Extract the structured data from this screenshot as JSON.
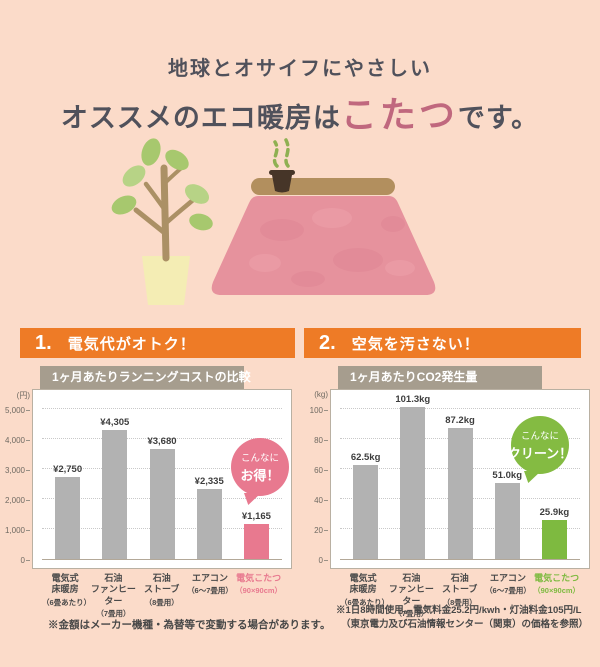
{
  "title": {
    "line1": "地球とオサイフにやさしい",
    "line2_prefix": "オススメのエコ暖房は",
    "line2_accent": "こたつ",
    "line2_suffix": "です。",
    "accent_color": "#c0687e"
  },
  "colors": {
    "background": "#fbdbc9",
    "header_orange": "#ee7b26",
    "tab_taupe": "#a69d8e",
    "bar_gray": "#b2b2b2",
    "pink_accent": "#e8798f",
    "green_accent": "#7eba40"
  },
  "sections": [
    {
      "number": "1.",
      "heading": "電気代がオトク！"
    },
    {
      "number": "2.",
      "heading": "空気を汚さない！"
    }
  ],
  "chart_data": [
    {
      "type": "bar",
      "title": "1ヶ月あたりランニングコストの比較",
      "unit_label": "(円)",
      "ylim": [
        0,
        5000
      ],
      "grid": true,
      "yticks": [
        {
          "v": 0,
          "label": "0"
        },
        {
          "v": 1000,
          "label": "1,000"
        },
        {
          "v": 2000,
          "label": "2,000"
        },
        {
          "v": 3000,
          "label": "3,000"
        },
        {
          "v": 4000,
          "label": "4,000"
        },
        {
          "v": 5000,
          "label": "5,000"
        }
      ],
      "categories": [
        {
          "lines": [
            "電気式",
            "床暖房"
          ],
          "sub": "（6畳あたり）"
        },
        {
          "lines": [
            "石油",
            "ファンヒーター"
          ],
          "sub": "（7畳用）"
        },
        {
          "lines": [
            "石油",
            "ストーブ"
          ],
          "sub": "（8畳用）"
        },
        {
          "lines": [
            "エアコン"
          ],
          "sub": "（6～7畳用）"
        },
        {
          "lines": [
            "電気こたつ"
          ],
          "sub": "（90×90cm）"
        }
      ],
      "values": [
        2750,
        4305,
        3680,
        2335,
        1165
      ],
      "value_labels": [
        "¥2,750",
        "¥4,305",
        "¥3,680",
        "¥2,335",
        "¥1,165"
      ],
      "highlight_index": 4,
      "bar_color": "#b2b2b2",
      "highlight_color": "#e8798f",
      "badge": {
        "line1": "こんなに",
        "line2": "お得！",
        "color": "#e8798f"
      }
    },
    {
      "type": "bar",
      "title": "1ヶ月あたりCO2発生量",
      "unit_label": "(kg)",
      "ylim": [
        0,
        100
      ],
      "grid": true,
      "yticks": [
        {
          "v": 0,
          "label": "0"
        },
        {
          "v": 20,
          "label": "20"
        },
        {
          "v": 40,
          "label": "40"
        },
        {
          "v": 60,
          "label": "60"
        },
        {
          "v": 80,
          "label": "80"
        },
        {
          "v": 100,
          "label": "100"
        }
      ],
      "categories": [
        {
          "lines": [
            "電気式",
            "床暖房"
          ],
          "sub": "（6畳あたり）"
        },
        {
          "lines": [
            "石油",
            "ファンヒーター"
          ],
          "sub": "（7畳用）"
        },
        {
          "lines": [
            "石油",
            "ストーブ"
          ],
          "sub": "（8畳用）"
        },
        {
          "lines": [
            "エアコン"
          ],
          "sub": "（6～7畳用）"
        },
        {
          "lines": [
            "電気こたつ"
          ],
          "sub": "（90×90cm）"
        }
      ],
      "values": [
        62.5,
        101.3,
        87.2,
        51.0,
        25.9
      ],
      "value_labels": [
        "62.5kg",
        "101.3kg",
        "87.2kg",
        "51.0kg",
        "25.9kg"
      ],
      "highlight_index": 4,
      "bar_color": "#b2b2b2",
      "highlight_color": "#7eba40",
      "badge": {
        "line1": "こんなに",
        "line2": "クリーン！",
        "color": "#84bb42"
      }
    }
  ],
  "footnotes": {
    "left": "※金額はメーカー機種・為替等で変動する場合があります。",
    "right_line1": "※1日8時間使用。電気料金25.2円/kwh・灯油料金105円/L",
    "right_line2": "（東京電力及び石油情報センター（関東）の価格を参照）"
  }
}
